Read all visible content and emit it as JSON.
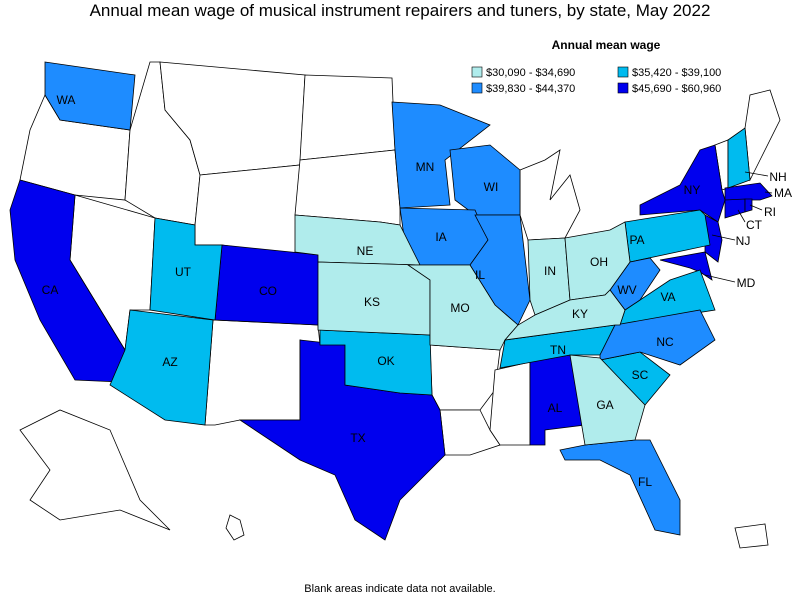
{
  "title": "Annual mean wage of musical instrument repairers and tuners, by state, May 2022",
  "legend": {
    "title": "Annual mean wage",
    "items": [
      {
        "label": "$30,090 - $34,690",
        "color": "#b0ecec",
        "states": [
          "NE",
          "KS",
          "MO",
          "IN",
          "OH",
          "KY",
          "GA"
        ]
      },
      {
        "label": "$35,420 - $39,100",
        "color": "#00bbef",
        "states": [
          "UT",
          "AZ",
          "OK",
          "TN",
          "PA",
          "NH",
          "SC",
          "VA"
        ]
      },
      {
        "label": "$39,830 - $44,370",
        "color": "#1e8cff",
        "states": [
          "WA",
          "MN",
          "WI",
          "IA",
          "IL",
          "WV",
          "NC",
          "FL"
        ]
      },
      {
        "label": "$45,690 - $60,960",
        "color": "#0000ee",
        "states": [
          "CA",
          "CO",
          "TX",
          "NY",
          "NJ",
          "MA",
          "CT",
          "RI",
          "MD",
          "AL"
        ]
      }
    ]
  },
  "footnote": "Blank areas indicate data not available."
}
